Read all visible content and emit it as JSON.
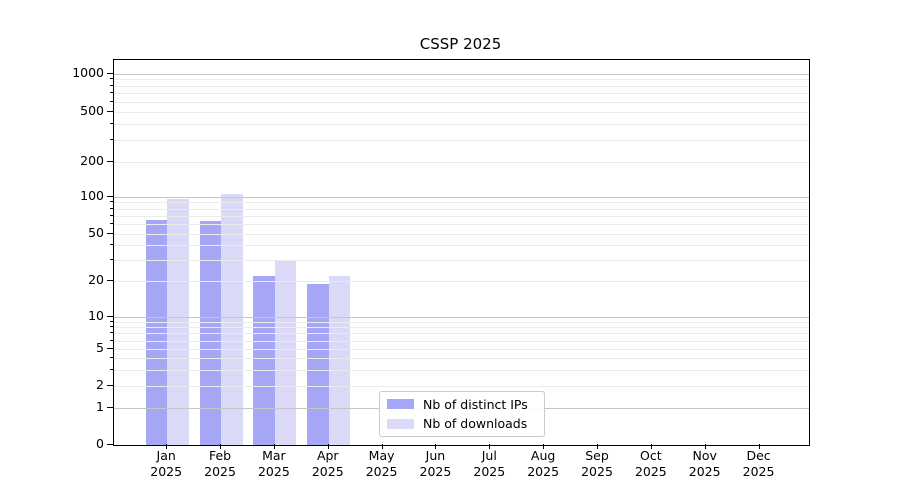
{
  "chart_data": {
    "type": "bar",
    "title": "CSSP 2025",
    "categories": [
      "Jan",
      "Feb",
      "Mar",
      "Apr",
      "May",
      "Jun",
      "Jul",
      "Aug",
      "Sep",
      "Oct",
      "Nov",
      "Dec"
    ],
    "x_year_label": "2025",
    "y_ticks": [
      0,
      1,
      2,
      5,
      10,
      20,
      50,
      100,
      200,
      500,
      1000
    ],
    "y_scale": "symlog",
    "ylim": [
      0,
      1370
    ],
    "grid": true,
    "legend_position": "lower-center-left",
    "series": [
      {
        "name": "Nb of distinct IPs",
        "color": "#a6a6f6",
        "values": [
          65,
          64,
          22,
          19,
          0,
          0,
          0,
          0,
          0,
          0,
          0,
          0
        ]
      },
      {
        "name": "Nb of downloads",
        "color": "#dadaf8",
        "values": [
          96,
          105,
          30,
          22,
          0,
          0,
          0,
          0,
          0,
          0,
          0,
          0
        ]
      }
    ],
    "colors": {
      "major_grid": "#c6c6c6",
      "minor_grid": "#ececec",
      "spine": "#000000",
      "text": "#000000",
      "legend_border": "#cccccc"
    }
  }
}
